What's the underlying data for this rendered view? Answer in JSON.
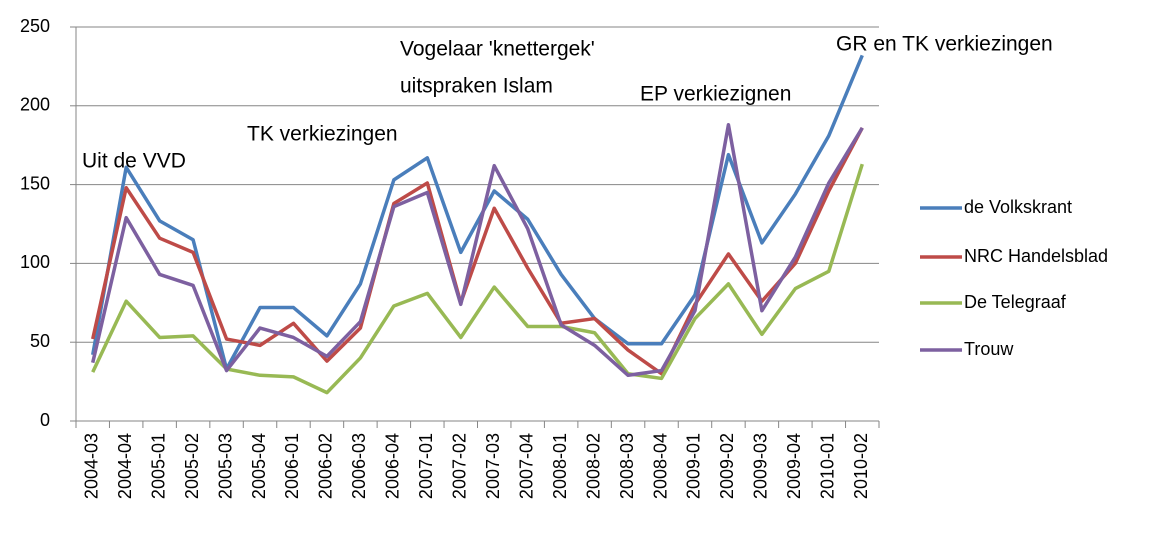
{
  "chart_data": {
    "type": "line",
    "categories": [
      "2004-03",
      "2004-04",
      "2005-01",
      "2005-02",
      "2005-03",
      "2005-04",
      "2006-01",
      "2006-02",
      "2006-03",
      "2006-04",
      "2007-01",
      "2007-02",
      "2007-03",
      "2007-04",
      "2008-01",
      "2008-02",
      "2008-03",
      "2008-04",
      "2009-01",
      "2009-02",
      "2009-03",
      "2009-04",
      "2010-01",
      "2010-02"
    ],
    "series": [
      {
        "name": "de Volkskrant",
        "color": "#4a7ebb",
        "values": [
          42,
          161,
          127,
          115,
          33,
          72,
          72,
          54,
          87,
          153,
          167,
          107,
          146,
          128,
          93,
          65,
          49,
          49,
          80,
          169,
          113,
          144,
          181,
          232
        ]
      },
      {
        "name": "NRC Handelsblad",
        "color": "#be4b48",
        "values": [
          52,
          148,
          116,
          107,
          52,
          48,
          62,
          38,
          59,
          138,
          151,
          75,
          135,
          97,
          62,
          65,
          45,
          30,
          74,
          106,
          76,
          100,
          146,
          186
        ]
      },
      {
        "name": "De Telegraaf",
        "color": "#98b954",
        "values": [
          31,
          76,
          53,
          54,
          33,
          29,
          28,
          18,
          40,
          73,
          81,
          53,
          85,
          60,
          60,
          56,
          30,
          27,
          65,
          87,
          55,
          84,
          95,
          163
        ]
      },
      {
        "name": "Trouw",
        "color": "#7d60a0",
        "values": [
          37,
          129,
          93,
          86,
          32,
          59,
          53,
          41,
          63,
          136,
          145,
          74,
          162,
          122,
          61,
          48,
          29,
          32,
          70,
          188,
          70,
          104,
          151,
          186
        ]
      }
    ],
    "annotations": [
      "Uit de VVD",
      "TK verkiezingen",
      "Vogelaar 'knettergek'",
      "uitspraken Islam",
      "EP verkiezignen",
      "GR en TK verkiezingen"
    ],
    "ylim": [
      0,
      250
    ],
    "yticks": [
      0,
      50,
      100,
      150,
      200,
      250
    ],
    "grid": true,
    "legend": "right"
  }
}
